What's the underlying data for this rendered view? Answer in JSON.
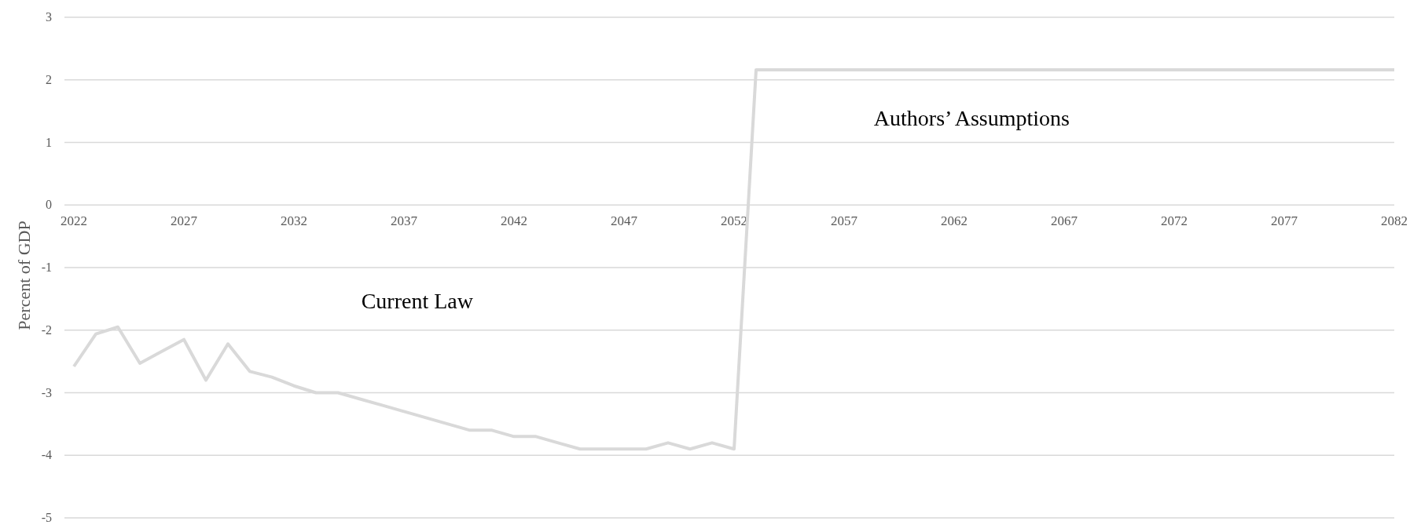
{
  "chart_data": {
    "type": "line",
    "ylabel": "Percent of GDP",
    "x": [
      2022,
      2023,
      2024,
      2025,
      2026,
      2027,
      2028,
      2029,
      2030,
      2031,
      2032,
      2033,
      2034,
      2035,
      2036,
      2037,
      2038,
      2039,
      2040,
      2041,
      2042,
      2043,
      2044,
      2045,
      2046,
      2047,
      2048,
      2049,
      2050,
      2051,
      2052,
      2053,
      2054,
      2055,
      2056,
      2057,
      2058,
      2059,
      2060,
      2061,
      2062,
      2063,
      2064,
      2065,
      2066,
      2067,
      2068,
      2069,
      2070,
      2071,
      2072,
      2073,
      2074,
      2075,
      2076,
      2077,
      2078,
      2079,
      2080,
      2081,
      2082
    ],
    "series": [
      {
        "color": "#d9d9d9",
        "values": [
          -2.58,
          -2.06,
          -1.95,
          -2.53,
          -2.34,
          -2.15,
          -2.8,
          -2.22,
          -2.66,
          -2.75,
          -2.89,
          -3.0,
          -3.0,
          -3.1,
          -3.2,
          -3.3,
          -3.4,
          -3.5,
          -3.6,
          -3.6,
          -3.7,
          -3.7,
          -3.8,
          -3.9,
          -3.9,
          -3.9,
          -3.9,
          -3.8,
          -3.9,
          -3.8,
          -3.9,
          2.16,
          2.16,
          2.16,
          2.16,
          2.16,
          2.16,
          2.16,
          2.16,
          2.16,
          2.16,
          2.16,
          2.16,
          2.16,
          2.16,
          2.16,
          2.16,
          2.16,
          2.16,
          2.16,
          2.16,
          2.16,
          2.16,
          2.16,
          2.16,
          2.16,
          2.16,
          2.16,
          2.16,
          2.16,
          2.16
        ]
      }
    ],
    "xlim": [
      2022,
      2082
    ],
    "xticks": [
      2022,
      2027,
      2032,
      2037,
      2042,
      2047,
      2052,
      2057,
      2062,
      2067,
      2072,
      2077,
      2082
    ],
    "ylim": [
      -5,
      3
    ],
    "yticks": [
      -5,
      -4,
      -3,
      -2,
      -1,
      0,
      1,
      2,
      3
    ],
    "grid": "y",
    "marker": "none",
    "line_style": "solid",
    "annotations": [
      "Current Law",
      "Authors’ Assumptions"
    ]
  }
}
